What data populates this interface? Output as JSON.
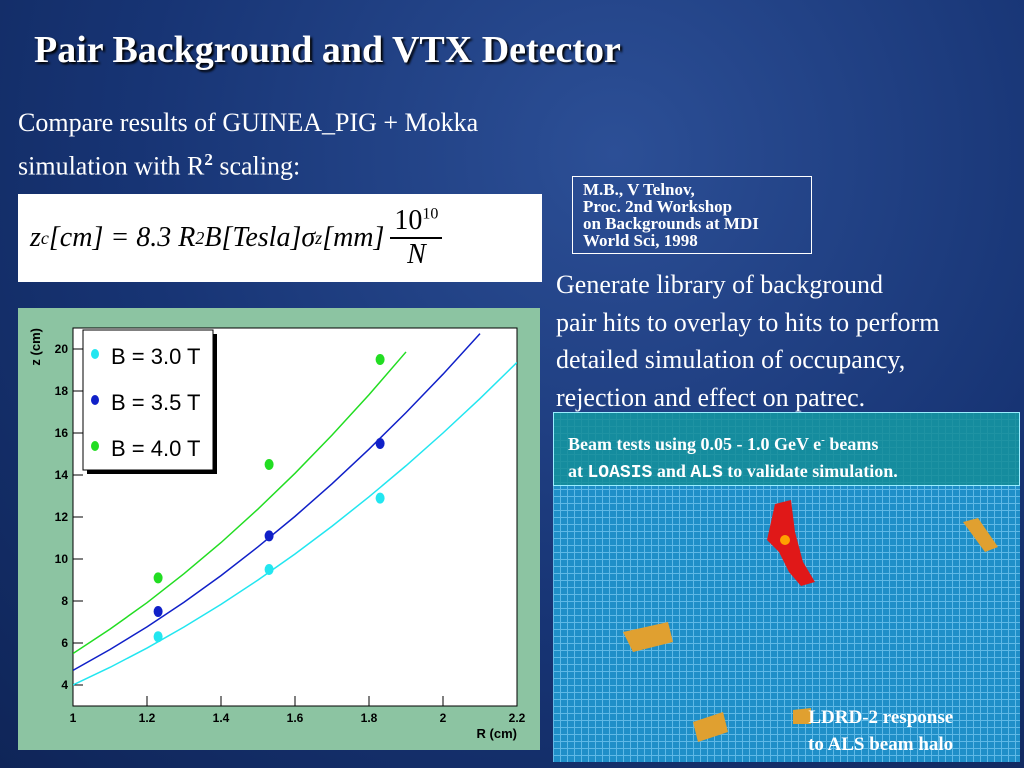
{
  "title": "Pair Background and VTX Detector",
  "intro": {
    "line1": "Compare results of GUINEA_PIG + Mokka",
    "line2": "simulation with R",
    "sup": "2",
    "tail": "scaling:"
  },
  "formula": {
    "z": "z",
    "z_sub": "c",
    "main": "[cm] = 8.3 R",
    "sq": "2",
    "mid": "B[Tesla]σ",
    "sigma_sub": "z",
    "end": "[mm]",
    "num": "10",
    "num_exp": "10",
    "den": "N"
  },
  "reference": [
    "M.B., V Telnov,",
    "Proc. 2nd Workshop",
    "on Backgrounds at MDI",
    "World Sci, 1998"
  ],
  "description": [
    "Generate library of background",
    "pair hits to overlay to hits to perform",
    "detailed simulation of occupancy,",
    "rejection and effect on patrec."
  ],
  "beam_box": {
    "line1": [
      "Beam tests using 0.05 - 1.0 GeV e",
      "-",
      "beams"
    ],
    "line2": [
      "at",
      "LOASIS",
      "and",
      "ALS",
      "to validate simulation."
    ]
  },
  "caption": [
    "LDRD-2 response",
    "to ALS beam halo"
  ],
  "chart_data": {
    "type": "scatter",
    "x_label": "R (cm)",
    "y_label": "z (cm)",
    "x": [
      1.23,
      1.53,
      1.83
    ],
    "fit_x": [
      1,
      1.1,
      1.2,
      1.3,
      1.4,
      1.5,
      1.6,
      1.7,
      1.8,
      1.9,
      2.0,
      2.1,
      2.2
    ],
    "series": [
      {
        "name": "B = 3.0 T",
        "color": "#22e6f0",
        "values": [
          6.3,
          9.5,
          12.9
        ],
        "fit": [
          4.0,
          4.84,
          5.76,
          6.76,
          7.84,
          9.0,
          10.24,
          11.56,
          12.96,
          14.44,
          16.0,
          17.64,
          19.36
        ]
      },
      {
        "name": "B = 3.5 T",
        "color": "#1020c8",
        "values": [
          7.5,
          11.1,
          15.5
        ],
        "fit": [
          4.7,
          5.69,
          6.77,
          7.94,
          9.21,
          10.58,
          12.03,
          13.58,
          15.23,
          16.97,
          18.8,
          20.73,
          null
        ]
      },
      {
        "name": "B = 4.0 T",
        "color": "#22dd22",
        "values": [
          9.1,
          14.5,
          19.5
        ],
        "fit": [
          5.5,
          6.66,
          7.92,
          9.3,
          10.78,
          12.38,
          14.08,
          15.9,
          17.82,
          19.86,
          null,
          null,
          null
        ]
      }
    ],
    "xlim": [
      1,
      2.2
    ],
    "xticks": [
      1,
      1.2,
      1.4,
      1.6,
      1.8,
      2,
      2.2
    ],
    "ylim": [
      3,
      21
    ],
    "yticks": [
      4,
      6,
      8,
      10,
      12,
      14,
      16,
      18,
      20
    ],
    "legend": "upper left"
  }
}
